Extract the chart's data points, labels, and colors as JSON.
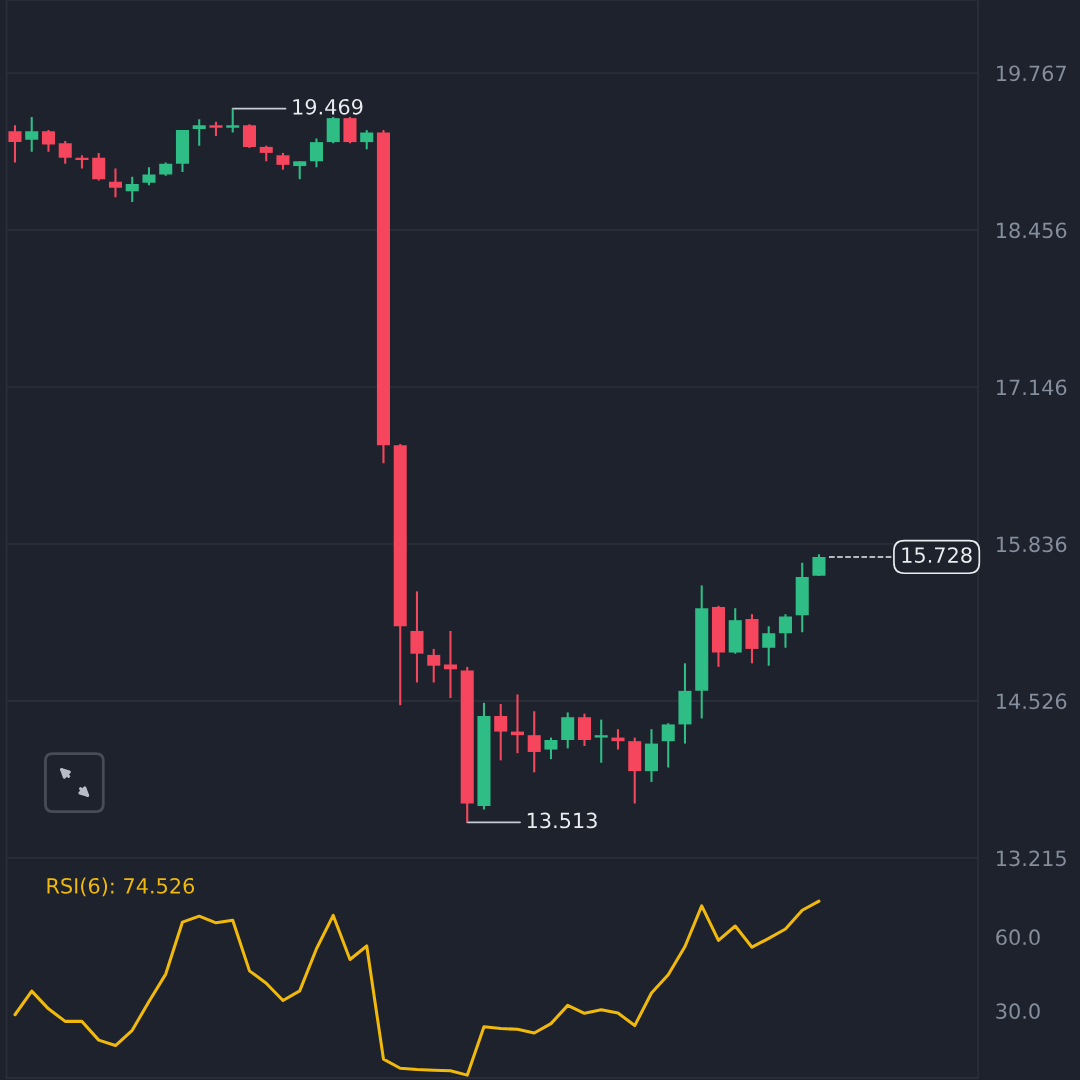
{
  "chart_data": [
    {
      "type": "candlestick",
      "categories": [
        null,
        null,
        null,
        null,
        null,
        null,
        null,
        null,
        null,
        null,
        null,
        null,
        null,
        null,
        null,
        null,
        null,
        null,
        null,
        null,
        null,
        null,
        null,
        null,
        null,
        null,
        null,
        null,
        null,
        null,
        null,
        null,
        null,
        null,
        null,
        null,
        null,
        null,
        null,
        null,
        null,
        null,
        null,
        null,
        null,
        null,
        null,
        null,
        null,
        null,
        null,
        null,
        null,
        null,
        null,
        null,
        null,
        null
      ],
      "ohlc": [
        [
          19.28,
          19.33,
          19.02,
          19.19
        ],
        [
          19.21,
          19.4,
          19.11,
          19.28
        ],
        [
          19.28,
          19.29,
          19.11,
          19.17
        ],
        [
          19.18,
          19.2,
          19.01,
          19.06
        ],
        [
          19.06,
          19.08,
          18.97,
          19.04
        ],
        [
          19.06,
          19.1,
          18.87,
          18.88
        ],
        [
          18.86,
          18.97,
          18.73,
          18.81
        ],
        [
          18.78,
          18.9,
          18.69,
          18.84
        ],
        [
          18.85,
          18.98,
          18.83,
          18.92
        ],
        [
          18.92,
          19.02,
          18.91,
          19.01
        ],
        [
          19.01,
          19.29,
          18.94,
          19.29
        ],
        [
          19.3,
          19.38,
          19.16,
          19.33
        ],
        [
          19.33,
          19.36,
          19.24,
          19.31
        ],
        [
          19.31,
          19.469,
          19.27,
          19.33
        ],
        [
          19.33,
          19.34,
          19.14,
          19.15
        ],
        [
          19.15,
          19.16,
          19.03,
          19.1
        ],
        [
          19.08,
          19.1,
          18.96,
          19.0
        ],
        [
          18.99,
          19.03,
          18.88,
          19.03
        ],
        [
          19.03,
          19.22,
          18.98,
          19.19
        ],
        [
          19.19,
          19.4,
          19.18,
          19.39
        ],
        [
          19.39,
          19.4,
          19.18,
          19.19
        ],
        [
          19.19,
          19.29,
          19.13,
          19.27
        ],
        [
          19.27,
          19.29,
          16.51,
          16.66
        ],
        [
          16.66,
          16.67,
          14.49,
          15.15
        ],
        [
          15.11,
          15.44,
          14.68,
          14.92
        ],
        [
          14.91,
          14.96,
          14.68,
          14.82
        ],
        [
          14.83,
          15.11,
          14.55,
          14.79
        ],
        [
          14.78,
          14.81,
          13.513,
          13.67
        ],
        [
          13.65,
          14.51,
          13.62,
          14.4
        ],
        [
          14.4,
          14.5,
          14.03,
          14.27
        ],
        [
          14.27,
          14.58,
          14.09,
          14.24
        ],
        [
          14.24,
          14.44,
          13.93,
          14.1
        ],
        [
          14.12,
          14.22,
          14.04,
          14.2
        ],
        [
          14.2,
          14.43,
          14.13,
          14.39
        ],
        [
          14.39,
          14.42,
          14.15,
          14.2
        ],
        [
          14.22,
          14.37,
          14.01,
          14.24
        ],
        [
          14.22,
          14.29,
          14.12,
          14.19
        ],
        [
          14.19,
          14.22,
          13.67,
          13.94
        ],
        [
          13.94,
          14.29,
          13.85,
          14.17
        ],
        [
          14.19,
          14.34,
          13.97,
          14.33
        ],
        [
          14.33,
          14.84,
          14.17,
          14.61
        ],
        [
          14.61,
          15.49,
          14.38,
          15.3
        ],
        [
          15.31,
          15.32,
          14.81,
          14.93
        ],
        [
          14.93,
          15.3,
          14.92,
          15.2
        ],
        [
          15.21,
          15.25,
          14.84,
          14.96
        ],
        [
          14.97,
          15.15,
          14.82,
          15.09
        ],
        [
          15.09,
          15.25,
          14.97,
          15.23
        ],
        [
          15.24,
          15.68,
          15.1,
          15.56
        ],
        [
          15.57,
          15.75,
          15.57,
          15.728
        ],
        null,
        null,
        null,
        null,
        null,
        null,
        null,
        null,
        null
      ],
      "colors": [
        "#f6465d",
        "#2ebd85",
        "#f6465d",
        "#f6465d",
        "#f6465d",
        "#f6465d",
        "#f6465d",
        "#2ebd85",
        "#2ebd85",
        "#2ebd85",
        "#2ebd85",
        "#2ebd85",
        "#f6465d",
        "#2ebd85",
        "#f6465d",
        "#f6465d",
        "#f6465d",
        "#2ebd85",
        "#2ebd85",
        "#2ebd85",
        "#f6465d",
        "#2ebd85",
        "#f6465d",
        "#f6465d",
        "#f6465d",
        "#f6465d",
        "#f6465d",
        "#f6465d",
        "#2ebd85",
        "#f6465d",
        "#f6465d",
        "#f6465d",
        "#2ebd85",
        "#2ebd85",
        "#f6465d",
        "#2ebd85",
        "#f6465d",
        "#f6465d",
        "#2ebd85",
        "#2ebd85",
        "#2ebd85",
        "#2ebd85",
        "#f6465d",
        "#2ebd85",
        "#f6465d",
        "#2ebd85",
        "#2ebd85",
        "#2ebd85",
        "#2ebd85",
        null,
        null,
        null,
        null,
        null,
        null,
        null,
        null,
        null
      ],
      "ylim": [
        13.215,
        20.376
      ],
      "yticks": [
        19.767,
        18.456,
        17.146,
        15.836,
        14.526,
        13.215
      ],
      "grid": "y",
      "tick_labels": "y",
      "annotations": [
        "19.469",
        "13.513"
      ],
      "ref_lines": [
        {
          "axis": "y",
          "value": 15.728,
          "label": "15.728",
          "line_style": "dashed",
          "color": "#eaecef"
        }
      ]
    },
    {
      "type": "line",
      "title": "RSI(6): 74.526",
      "categories": [
        null,
        null,
        null,
        null,
        null,
        null,
        null,
        null,
        null,
        null,
        null,
        null,
        null,
        null,
        null,
        null,
        null,
        null,
        null,
        null,
        null,
        null,
        null,
        null,
        null,
        null,
        null,
        null,
        null,
        null,
        null,
        null,
        null,
        null,
        null,
        null,
        null,
        null,
        null,
        null,
        null,
        null,
        null,
        null,
        null,
        null,
        null,
        null,
        null,
        null,
        null,
        null,
        null,
        null,
        null,
        null,
        null,
        null
      ],
      "series": [
        {
          "color": "#f0b90b",
          "values": [
            28.4,
            38.0,
            30.8,
            25.7,
            25.7,
            18.1,
            15.9,
            22.1,
            33.8,
            44.9,
            66.0,
            68.4,
            65.7,
            66.7,
            46.2,
            41.2,
            34.2,
            38.1,
            55.2,
            68.7,
            50.8,
            56.3,
            10.4,
            6.7,
            6.2,
            5.9,
            5.7,
            3.9,
            23.5,
            22.8,
            22.5,
            21.0,
            24.8,
            32.2,
            29.0,
            30.4,
            29.1,
            24.0,
            37.2,
            44.6,
            56.1,
            72.6,
            58.6,
            64.4,
            55.8,
            59.4,
            63.2,
            70.8,
            74.5,
            null,
            null,
            null,
            null,
            null,
            null,
            null,
            null,
            null
          ]
        }
      ],
      "ylim": [
        2.8,
        92
      ],
      "yticks": [
        {
          "value": 60,
          "label": "60.0"
        },
        {
          "value": 30,
          "label": "30.0"
        }
      ],
      "tick_labels": "y"
    }
  ]
}
